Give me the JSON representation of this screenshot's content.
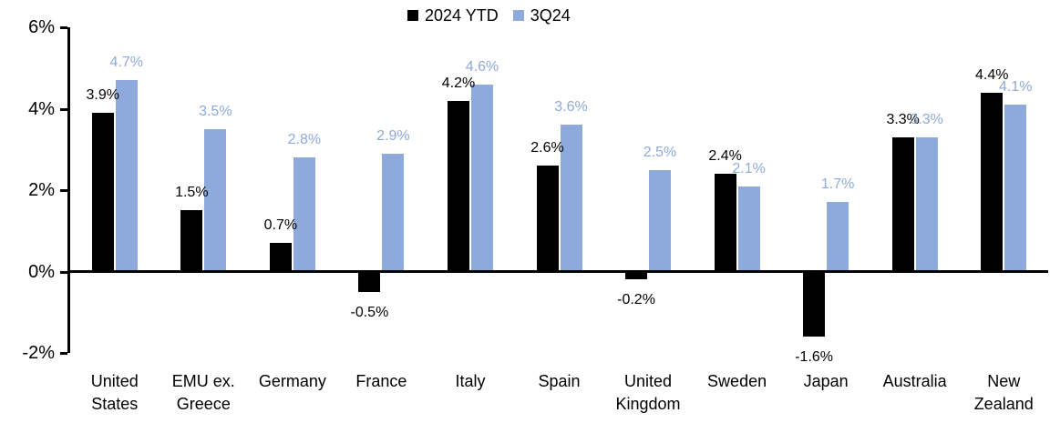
{
  "chart_data": {
    "type": "bar",
    "title": "",
    "categories": [
      "United States",
      "EMU ex. Greece",
      "Germany",
      "France",
      "Italy",
      "Spain",
      "United Kingdom",
      "Sweden",
      "Japan",
      "Australia",
      "New Zealand"
    ],
    "series": [
      {
        "name": "2024 YTD",
        "color": "#000000",
        "values": [
          3.9,
          1.5,
          0.7,
          -0.5,
          4.2,
          2.6,
          -0.2,
          2.4,
          -1.6,
          3.3,
          4.4
        ],
        "labels": [
          "3.9%",
          "1.5%",
          "0.7%",
          "-0.5%",
          "4.2%",
          "2.6%",
          "-0.2%",
          "2.4%",
          "-1.6%",
          "3.3%",
          "4.4%"
        ]
      },
      {
        "name": "3Q24",
        "color": "#8EA9DB",
        "values": [
          4.7,
          3.5,
          2.8,
          2.9,
          4.6,
          3.6,
          2.5,
          2.1,
          1.7,
          3.3,
          4.1
        ],
        "labels": [
          "4.7%",
          "3.5%",
          "2.8%",
          "2.9%",
          "4.6%",
          "3.6%",
          "2.5%",
          "2.1%",
          "1.7%",
          "3.3%",
          "4.1%"
        ]
      }
    ],
    "y_axis": {
      "min": -2,
      "max": 6,
      "tick_step": 2,
      "tick_labels": [
        "6%",
        "4%",
        "2%",
        "0%",
        "-2%"
      ]
    },
    "legend_position": "top-center",
    "grid": false,
    "data_labels_shown": true
  },
  "colors": {
    "background": "#FFFFFF",
    "axis": "#000000",
    "series_2024_ytd": "#000000",
    "series_3q24": "#8EA9DB"
  }
}
